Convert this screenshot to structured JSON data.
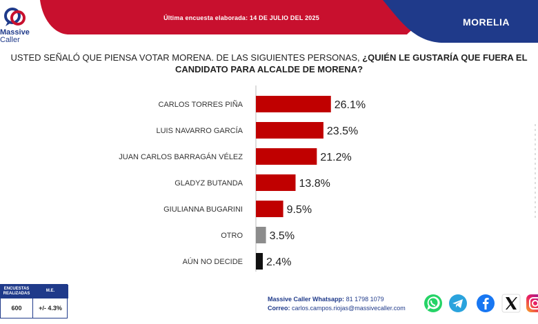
{
  "header": {
    "survey_date": "Última encuesta elaborada: 14 DE JULIO DEL 2025",
    "city": "MORELIA",
    "colors": {
      "red": "#c8102e",
      "navy": "#1f3a8a"
    }
  },
  "logo": {
    "line1": "Massive",
    "line2": "Caller",
    "icon": "speech-bubbles-icon"
  },
  "question": {
    "plain": "USTED SEÑALÓ QUE PIENSA VOTAR MORENA. DE LAS SIGUIENTES PERSONAS, ",
    "bold": "¿QUIÉN LE GUSTARÍA QUE FUERA EL CANDIDATO PARA ALCALDE DE MORENA?"
  },
  "chart_data": {
    "type": "bar",
    "orientation": "horizontal",
    "categories": [
      "CARLOS TORRES PIÑA",
      "LUIS NAVARRO GARCÍA",
      "JUAN CARLOS BARRAGÁN VÉLEZ",
      "GLADYZ BUTANDA",
      "GIULIANNA BUGARINI",
      "OTRO",
      "AÚN NO DECIDE"
    ],
    "values": [
      26.1,
      23.5,
      21.2,
      13.8,
      9.5,
      3.5,
      2.4
    ],
    "value_labels": [
      "26.1%",
      "23.5%",
      "21.2%",
      "13.8%",
      "9.5%",
      "3.5%",
      "2.4%"
    ],
    "bar_colors": [
      "#c00000",
      "#c00000",
      "#c00000",
      "#c00000",
      "#c00000",
      "#8c8c8c",
      "#111111"
    ],
    "xlim": [
      0,
      30
    ],
    "grid": false,
    "axis_line_color": "#bbbbbb"
  },
  "footer": {
    "stats": {
      "col1_header": "ENCUESTAS REALIZADAS",
      "col2_header": "M.E.",
      "col1_value": "600",
      "col2_value": "+/- 4.3%"
    },
    "contact": {
      "whatsapp_label": "Massive Caller Whatsapp:",
      "whatsapp_number": "81 1798 1079",
      "email_label": "Correo:",
      "email": "carlos.campos.riojas@massivecaller.com"
    },
    "social_icons": [
      "whatsapp-icon",
      "telegram-icon",
      "facebook-icon",
      "x-icon",
      "instagram-icon"
    ]
  }
}
